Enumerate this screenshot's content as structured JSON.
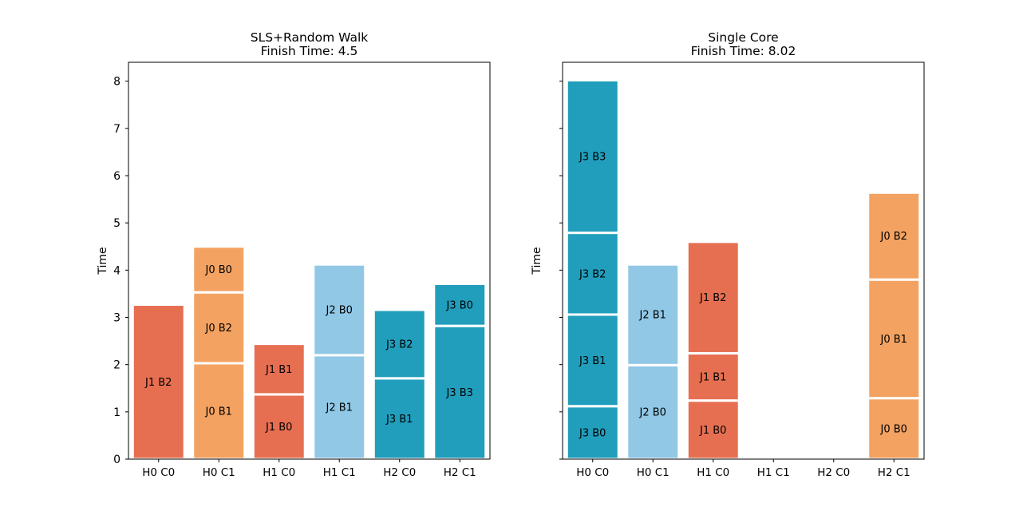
{
  "colors": {
    "J0": "#F3A261",
    "J1": "#E76F51",
    "J2": "#90C8E6",
    "J3": "#219EBC",
    "separator": "#ffffff"
  },
  "chart_data": [
    {
      "type": "bar",
      "stacked": true,
      "title": "SLS+Random Walk\nFinish Time: 4.5",
      "xlabel": "",
      "ylabel": "Time",
      "ylim": [
        0,
        8.4
      ],
      "yticks": [
        "0",
        "1",
        "2",
        "3",
        "4",
        "5",
        "6",
        "7",
        "8"
      ],
      "categories": [
        "H0 C0",
        "H0 C1",
        "H1 C0",
        "H1 C1",
        "H2 C0",
        "H2 C1"
      ],
      "bars": [
        [
          {
            "label": "J1 B2",
            "job": "J1",
            "start": 0,
            "end": 3.27
          }
        ],
        [
          {
            "label": "J0 B1",
            "job": "J0",
            "start": 0,
            "end": 2.03
          },
          {
            "label": "J0 B2",
            "job": "J0",
            "start": 2.03,
            "end": 3.53
          },
          {
            "label": "J0 B0",
            "job": "J0",
            "start": 3.53,
            "end": 4.5
          }
        ],
        [
          {
            "label": "J1 B0",
            "job": "J1",
            "start": 0,
            "end": 1.37
          },
          {
            "label": "J1 B1",
            "job": "J1",
            "start": 1.37,
            "end": 2.44
          }
        ],
        [
          {
            "label": "J2 B1",
            "job": "J2",
            "start": 0,
            "end": 2.2
          },
          {
            "label": "J2 B0",
            "job": "J2",
            "start": 2.2,
            "end": 4.12
          }
        ],
        [
          {
            "label": "J3 B1",
            "job": "J3",
            "start": 0,
            "end": 1.71
          },
          {
            "label": "J3 B2",
            "job": "J3",
            "start": 1.71,
            "end": 3.16
          }
        ],
        [
          {
            "label": "J3 B3",
            "job": "J3",
            "start": 0,
            "end": 2.82
          },
          {
            "label": "J3 B0",
            "job": "J3",
            "start": 2.82,
            "end": 3.71
          }
        ]
      ]
    },
    {
      "type": "bar",
      "stacked": true,
      "title": "Single Core\nFinish Time: 8.02",
      "xlabel": "",
      "ylabel": "Time",
      "ylim": [
        0,
        8.4
      ],
      "yticks": [],
      "categories": [
        "H0 C0",
        "H0 C1",
        "H1 C0",
        "H1 C1",
        "H2 C0",
        "H2 C1"
      ],
      "bars": [
        [
          {
            "label": "J3 B0",
            "job": "J3",
            "start": 0,
            "end": 1.12
          },
          {
            "label": "J3 B1",
            "job": "J3",
            "start": 1.12,
            "end": 3.06
          },
          {
            "label": "J3 B2",
            "job": "J3",
            "start": 3.06,
            "end": 4.79
          },
          {
            "label": "J3 B3",
            "job": "J3",
            "start": 4.79,
            "end": 8.02
          }
        ],
        [
          {
            "label": "J2 B0",
            "job": "J2",
            "start": 0,
            "end": 1.99
          },
          {
            "label": "J2 B1",
            "job": "J2",
            "start": 1.99,
            "end": 4.12
          }
        ],
        [
          {
            "label": "J1 B0",
            "job": "J1",
            "start": 0,
            "end": 1.24
          },
          {
            "label": "J1 B1",
            "job": "J1",
            "start": 1.24,
            "end": 2.24
          },
          {
            "label": "J1 B2",
            "job": "J1",
            "start": 2.24,
            "end": 4.6
          }
        ],
        [],
        [],
        [
          {
            "label": "J0 B0",
            "job": "J0",
            "start": 0,
            "end": 1.29
          },
          {
            "label": "J0 B1",
            "job": "J0",
            "start": 1.29,
            "end": 3.8
          },
          {
            "label": "J0 B2",
            "job": "J0",
            "start": 3.8,
            "end": 5.64
          }
        ]
      ]
    }
  ]
}
